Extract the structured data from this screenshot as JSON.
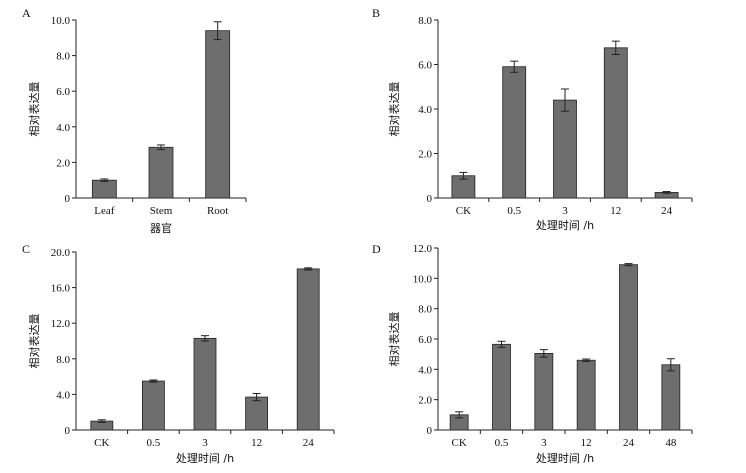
{
  "chart_data": [
    {
      "type": "bar",
      "panel_label": "A",
      "categories": [
        "Leaf",
        "Stem",
        "Root"
      ],
      "values": [
        1.0,
        2.85,
        9.4
      ],
      "errors": [
        0.07,
        0.13,
        0.5
      ],
      "ylim": [
        0,
        10.0
      ],
      "yticks": [
        "0",
        "2.0",
        "4.0",
        "6.0",
        "8.0",
        "10.0"
      ],
      "ylabel": "相对表达量",
      "xlabel": "器官"
    },
    {
      "type": "bar",
      "panel_label": "B",
      "categories": [
        "CK",
        "0.5",
        "3",
        "12",
        "24"
      ],
      "values": [
        1.0,
        5.9,
        4.4,
        6.75,
        0.25
      ],
      "errors": [
        0.15,
        0.25,
        0.5,
        0.3,
        0.04
      ],
      "ylim": [
        0,
        8.0
      ],
      "yticks": [
        "0",
        "2.0",
        "4.0",
        "6.0",
        "8.0"
      ],
      "ylabel": "相对表达量",
      "xlabel": "处理时间 /h"
    },
    {
      "type": "bar",
      "panel_label": "C",
      "categories": [
        "CK",
        "0.5",
        "3",
        "12",
        "24"
      ],
      "values": [
        1.0,
        5.5,
        10.3,
        3.7,
        18.1
      ],
      "errors": [
        0.15,
        0.12,
        0.3,
        0.4,
        0.12
      ],
      "ylim": [
        0,
        20.0
      ],
      "yticks": [
        "0",
        "4.0",
        "8.0",
        "12.0",
        "16.0",
        "20.0"
      ],
      "ylabel": "相对表达量",
      "xlabel": "处理时间 /h"
    },
    {
      "type": "bar",
      "panel_label": "D",
      "categories": [
        "CK",
        "0.5",
        "3",
        "12",
        "24",
        "48"
      ],
      "values": [
        1.0,
        5.65,
        5.05,
        4.6,
        10.9,
        4.3
      ],
      "errors": [
        0.2,
        0.2,
        0.25,
        0.08,
        0.07,
        0.4
      ],
      "ylim": [
        0,
        12.0
      ],
      "yticks": [
        "0",
        "2.0",
        "4.0",
        "6.0",
        "8.0",
        "10.0",
        "12.0"
      ],
      "ylabel": "相对表达量",
      "xlabel": "处理时间 /h"
    }
  ]
}
